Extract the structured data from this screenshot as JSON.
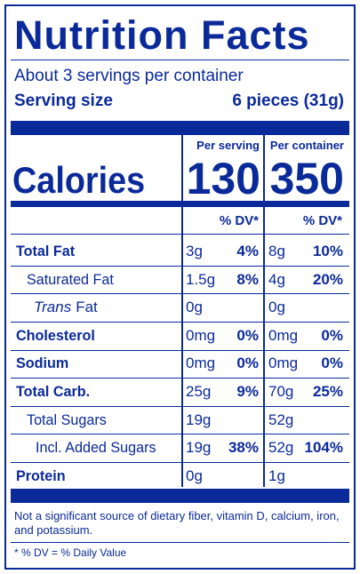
{
  "header": {
    "title": "Nutrition Facts",
    "servings": "About 3 servings per container",
    "serving_size_label": "Serving size",
    "serving_size": "6 pieces (31g)"
  },
  "columns": {
    "per_serving": "Per serving",
    "per_container": "Per container"
  },
  "calories": {
    "label": "Calories",
    "per_serving": "130",
    "per_container": "350"
  },
  "dv_header": {
    "per_serving": "% DV*",
    "per_container": "% DV*"
  },
  "rows": [
    {
      "label": "Total Fat",
      "serving": "3g",
      "serving_dv": "4%",
      "container": "8g",
      "container_dv": "10%"
    },
    {
      "label": "Saturated Fat",
      "serving": "1.5g",
      "serving_dv": "8%",
      "container": "4g",
      "container_dv": "20%"
    },
    {
      "label_italic": "Trans",
      "label": "Fat",
      "serving": "0g",
      "container": "0g"
    },
    {
      "label": "Cholesterol",
      "serving": "0mg",
      "serving_dv": "0%",
      "container": "0mg",
      "container_dv": "0%"
    },
    {
      "label": "Sodium",
      "serving": "0mg",
      "serving_dv": "0%",
      "container": "0mg",
      "container_dv": "0%"
    },
    {
      "label": "Total Carb.",
      "serving": "25g",
      "serving_dv": "9%",
      "container": "70g",
      "container_dv": "25%"
    },
    {
      "label": "Total Sugars",
      "serving": "19g",
      "container": "52g"
    },
    {
      "label": "Incl. Added Sugars",
      "serving": "19g",
      "serving_dv": "38%",
      "container": "52g",
      "container_dv": "104%"
    },
    {
      "label": "Protein",
      "serving": "0g",
      "container": "1g"
    }
  ],
  "footnote": {
    "text": "Not a significant source of dietary fiber, vitamin D, calcium, iron, and potassium.",
    "dv_note": "* % DV = % Daily Value"
  }
}
